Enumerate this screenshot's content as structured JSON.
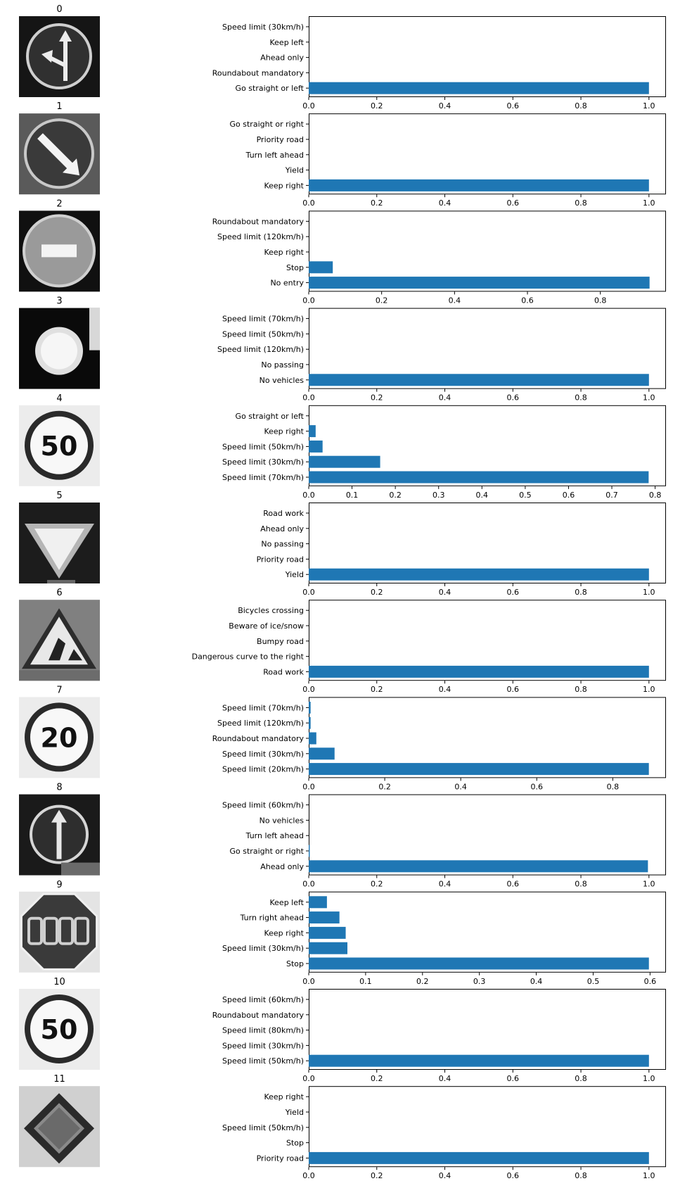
{
  "chart_data": [
    {
      "type": "bar",
      "orientation": "horizontal",
      "title": "0",
      "image": "ahead-or-left-sign-icon",
      "categories": [
        "Speed limit (30km/h)",
        "Keep left",
        "Ahead only",
        "Roundabout mandatory",
        "Go straight or left"
      ],
      "values": [
        0.0,
        0.0,
        0.0,
        0.0,
        1.0
      ],
      "xlim": [
        0,
        1.05
      ],
      "xticks": [
        "0.0",
        "0.2",
        "0.4",
        "0.6",
        "0.8",
        "1.0"
      ],
      "bar_color": "#1f77b4"
    },
    {
      "type": "bar",
      "orientation": "horizontal",
      "title": "1",
      "image": "keep-right-sign-icon",
      "categories": [
        "Go straight or right",
        "Priority road",
        "Turn left ahead",
        "Yield",
        "Keep right"
      ],
      "values": [
        0.0,
        0.0,
        0.0,
        0.0,
        1.0
      ],
      "xlim": [
        0,
        1.05
      ],
      "xticks": [
        "0.0",
        "0.2",
        "0.4",
        "0.6",
        "0.8",
        "1.0"
      ],
      "bar_color": "#1f77b4"
    },
    {
      "type": "bar",
      "orientation": "horizontal",
      "title": "2",
      "image": "no-entry-sign-icon",
      "categories": [
        "Roundabout mandatory",
        "Speed limit (120km/h)",
        "Keep right",
        "Stop",
        "No entry"
      ],
      "values": [
        0.0,
        0.0,
        0.0,
        0.066,
        0.935
      ],
      "xlim": [
        0,
        0.98
      ],
      "xticks": [
        "0.0",
        "0.2",
        "0.4",
        "0.6",
        "0.8"
      ],
      "bar_color": "#1f77b4"
    },
    {
      "type": "bar",
      "orientation": "horizontal",
      "title": "3",
      "image": "no-vehicles-sign-icon",
      "categories": [
        "Speed limit (70km/h)",
        "Speed limit (50km/h)",
        "Speed limit (120km/h)",
        "No passing",
        "No vehicles"
      ],
      "values": [
        0.0,
        0.0,
        0.0,
        0.0,
        1.0
      ],
      "xlim": [
        0,
        1.05
      ],
      "xticks": [
        "0.0",
        "0.2",
        "0.4",
        "0.6",
        "0.8",
        "1.0"
      ],
      "bar_color": "#1f77b4"
    },
    {
      "type": "bar",
      "orientation": "horizontal",
      "title": "4",
      "image": "speed-limit-50-sign-icon",
      "categories": [
        "Go straight or left",
        "Keep right",
        "Speed limit (50km/h)",
        "Speed limit (30km/h)",
        "Speed limit (70km/h)"
      ],
      "values": [
        0.0,
        0.016,
        0.032,
        0.165,
        0.785
      ],
      "xlim": [
        0,
        0.825
      ],
      "xticks": [
        "0.0",
        "0.1",
        "0.2",
        "0.3",
        "0.4",
        "0.5",
        "0.6",
        "0.7",
        "0.8"
      ],
      "bar_color": "#1f77b4"
    },
    {
      "type": "bar",
      "orientation": "horizontal",
      "title": "5",
      "image": "yield-sign-icon",
      "categories": [
        "Road work",
        "Ahead only",
        "No passing",
        "Priority road",
        "Yield"
      ],
      "values": [
        0.0,
        0.0,
        0.0,
        0.0,
        1.0
      ],
      "xlim": [
        0,
        1.05
      ],
      "xticks": [
        "0.0",
        "0.2",
        "0.4",
        "0.6",
        "0.8",
        "1.0"
      ],
      "bar_color": "#1f77b4"
    },
    {
      "type": "bar",
      "orientation": "horizontal",
      "title": "6",
      "image": "road-work-sign-icon",
      "categories": [
        "Bicycles crossing",
        "Beware of ice/snow",
        "Bumpy road",
        "Dangerous curve to the right",
        "Road work"
      ],
      "values": [
        0.0,
        0.0,
        0.0,
        0.0,
        1.0
      ],
      "xlim": [
        0,
        1.05
      ],
      "xticks": [
        "0.0",
        "0.2",
        "0.4",
        "0.6",
        "0.8",
        "1.0"
      ],
      "bar_color": "#1f77b4"
    },
    {
      "type": "bar",
      "orientation": "horizontal",
      "title": "7",
      "image": "speed-limit-20-sign-icon",
      "categories": [
        "Speed limit (70km/h)",
        "Speed limit (120km/h)",
        "Roundabout mandatory",
        "Speed limit (30km/h)",
        "Speed limit (20km/h)"
      ],
      "values": [
        0.005,
        0.005,
        0.02,
        0.068,
        0.895
      ],
      "xlim": [
        0,
        0.94
      ],
      "xticks": [
        "0.0",
        "0.2",
        "0.4",
        "0.6",
        "0.8"
      ],
      "bar_color": "#1f77b4"
    },
    {
      "type": "bar",
      "orientation": "horizontal",
      "title": "8",
      "image": "ahead-only-sign-icon",
      "categories": [
        "Speed limit (60km/h)",
        "No vehicles",
        "Turn left ahead",
        "Go straight or right",
        "Ahead only"
      ],
      "values": [
        0.0,
        0.0,
        0.0,
        0.003,
        0.997
      ],
      "xlim": [
        0,
        1.05
      ],
      "xticks": [
        "0.0",
        "0.2",
        "0.4",
        "0.6",
        "0.8",
        "1.0"
      ],
      "bar_color": "#1f77b4"
    },
    {
      "type": "bar",
      "orientation": "horizontal",
      "title": "9",
      "image": "stop-sign-icon",
      "categories": [
        "Keep left",
        "Turn right ahead",
        "Keep right",
        "Speed limit (30km/h)",
        "Stop"
      ],
      "values": [
        0.032,
        0.054,
        0.065,
        0.068,
        0.598
      ],
      "xlim": [
        0,
        0.628
      ],
      "xticks": [
        "0.0",
        "0.1",
        "0.2",
        "0.3",
        "0.4",
        "0.5",
        "0.6"
      ],
      "bar_color": "#1f77b4"
    },
    {
      "type": "bar",
      "orientation": "horizontal",
      "title": "10",
      "image": "speed-limit-50-sign-icon",
      "categories": [
        "Speed limit (60km/h)",
        "Roundabout mandatory",
        "Speed limit (80km/h)",
        "Speed limit (30km/h)",
        "Speed limit (50km/h)"
      ],
      "values": [
        0.0,
        0.0,
        0.0,
        0.0,
        1.0
      ],
      "xlim": [
        0,
        1.05
      ],
      "xticks": [
        "0.0",
        "0.2",
        "0.4",
        "0.6",
        "0.8",
        "1.0"
      ],
      "bar_color": "#1f77b4"
    },
    {
      "type": "bar",
      "orientation": "horizontal",
      "title": "11",
      "image": "priority-road-sign-icon",
      "categories": [
        "Keep right",
        "Yield",
        "Speed limit (50km/h)",
        "Stop",
        "Priority road"
      ],
      "values": [
        0.0,
        0.0,
        0.0,
        0.0,
        1.0
      ],
      "xlim": [
        0,
        1.05
      ],
      "xticks": [
        "0.0",
        "0.2",
        "0.4",
        "0.6",
        "0.8",
        "1.0"
      ],
      "bar_color": "#1f77b4"
    }
  ]
}
